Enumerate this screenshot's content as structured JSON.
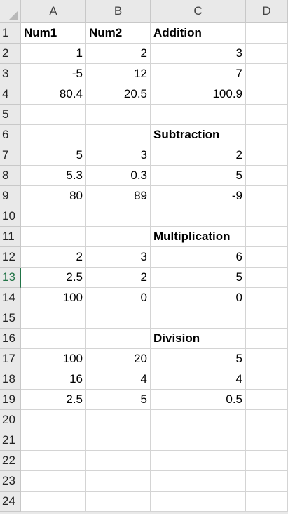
{
  "columns": [
    "A",
    "B",
    "C",
    "D"
  ],
  "rows": [
    {
      "num": "1",
      "cells": [
        {
          "v": "Num1",
          "bold": true
        },
        {
          "v": "Num2",
          "bold": true
        },
        {
          "v": "Addition",
          "bold": true
        },
        {
          "v": ""
        }
      ]
    },
    {
      "num": "2",
      "cells": [
        {
          "v": "1",
          "n": true
        },
        {
          "v": "2",
          "n": true
        },
        {
          "v": "3",
          "n": true
        },
        {
          "v": ""
        }
      ]
    },
    {
      "num": "3",
      "cells": [
        {
          "v": "-5",
          "n": true
        },
        {
          "v": "12",
          "n": true
        },
        {
          "v": "7",
          "n": true
        },
        {
          "v": ""
        }
      ]
    },
    {
      "num": "4",
      "cells": [
        {
          "v": "80.4",
          "n": true
        },
        {
          "v": "20.5",
          "n": true
        },
        {
          "v": "100.9",
          "n": true
        },
        {
          "v": ""
        }
      ]
    },
    {
      "num": "5",
      "cells": [
        {
          "v": ""
        },
        {
          "v": ""
        },
        {
          "v": ""
        },
        {
          "v": ""
        }
      ]
    },
    {
      "num": "6",
      "cells": [
        {
          "v": ""
        },
        {
          "v": ""
        },
        {
          "v": "Subtraction",
          "bold": true
        },
        {
          "v": ""
        }
      ]
    },
    {
      "num": "7",
      "cells": [
        {
          "v": "5",
          "n": true
        },
        {
          "v": "3",
          "n": true
        },
        {
          "v": "2",
          "n": true
        },
        {
          "v": ""
        }
      ]
    },
    {
      "num": "8",
      "cells": [
        {
          "v": "5.3",
          "n": true
        },
        {
          "v": "0.3",
          "n": true
        },
        {
          "v": "5",
          "n": true
        },
        {
          "v": ""
        }
      ]
    },
    {
      "num": "9",
      "cells": [
        {
          "v": "80",
          "n": true
        },
        {
          "v": "89",
          "n": true
        },
        {
          "v": "-9",
          "n": true
        },
        {
          "v": ""
        }
      ]
    },
    {
      "num": "10",
      "cells": [
        {
          "v": ""
        },
        {
          "v": ""
        },
        {
          "v": ""
        },
        {
          "v": ""
        }
      ]
    },
    {
      "num": "11",
      "cells": [
        {
          "v": ""
        },
        {
          "v": ""
        },
        {
          "v": "Multiplication",
          "bold": true
        },
        {
          "v": ""
        }
      ]
    },
    {
      "num": "12",
      "cells": [
        {
          "v": "2",
          "n": true
        },
        {
          "v": "3",
          "n": true
        },
        {
          "v": "6",
          "n": true
        },
        {
          "v": ""
        }
      ]
    },
    {
      "num": "13",
      "active": true,
      "cells": [
        {
          "v": "2.5",
          "n": true
        },
        {
          "v": "2",
          "n": true
        },
        {
          "v": "5",
          "n": true
        },
        {
          "v": ""
        }
      ]
    },
    {
      "num": "14",
      "cells": [
        {
          "v": "100",
          "n": true
        },
        {
          "v": "0",
          "n": true
        },
        {
          "v": "0",
          "n": true
        },
        {
          "v": ""
        }
      ]
    },
    {
      "num": "15",
      "cells": [
        {
          "v": ""
        },
        {
          "v": ""
        },
        {
          "v": ""
        },
        {
          "v": ""
        }
      ]
    },
    {
      "num": "16",
      "cells": [
        {
          "v": ""
        },
        {
          "v": ""
        },
        {
          "v": "Division",
          "bold": true
        },
        {
          "v": ""
        }
      ]
    },
    {
      "num": "17",
      "cells": [
        {
          "v": "100",
          "n": true
        },
        {
          "v": "20",
          "n": true
        },
        {
          "v": "5",
          "n": true
        },
        {
          "v": ""
        }
      ]
    },
    {
      "num": "18",
      "cells": [
        {
          "v": "16",
          "n": true
        },
        {
          "v": "4",
          "n": true
        },
        {
          "v": "4",
          "n": true
        },
        {
          "v": ""
        }
      ]
    },
    {
      "num": "19",
      "cells": [
        {
          "v": "2.5",
          "n": true
        },
        {
          "v": "5",
          "n": true
        },
        {
          "v": "0.5",
          "n": true
        },
        {
          "v": ""
        }
      ]
    },
    {
      "num": "20",
      "cells": [
        {
          "v": ""
        },
        {
          "v": ""
        },
        {
          "v": ""
        },
        {
          "v": ""
        }
      ]
    },
    {
      "num": "21",
      "cells": [
        {
          "v": ""
        },
        {
          "v": ""
        },
        {
          "v": ""
        },
        {
          "v": ""
        }
      ]
    },
    {
      "num": "22",
      "cells": [
        {
          "v": ""
        },
        {
          "v": ""
        },
        {
          "v": ""
        },
        {
          "v": ""
        }
      ]
    },
    {
      "num": "23",
      "cells": [
        {
          "v": ""
        },
        {
          "v": ""
        },
        {
          "v": ""
        },
        {
          "v": ""
        }
      ]
    },
    {
      "num": "24",
      "cells": [
        {
          "v": ""
        },
        {
          "v": ""
        },
        {
          "v": ""
        },
        {
          "v": ""
        }
      ]
    }
  ],
  "colors": {
    "header_bg": "#e9e9e9",
    "active_accent": "#217346",
    "gridline": "#d4d4d4"
  }
}
